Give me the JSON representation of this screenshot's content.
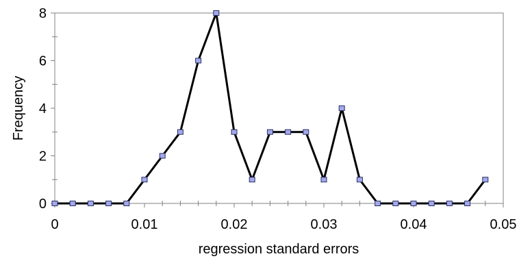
{
  "chart_data": {
    "type": "line",
    "xlabel": "regression standard errors",
    "ylabel": "Frequency",
    "xlim": [
      0,
      0.05
    ],
    "ylim": [
      0,
      8
    ],
    "x_ticks": [
      "0",
      "0.01",
      "0.02",
      "0.03",
      "0.04",
      "0.05"
    ],
    "y_ticks": [
      "0",
      "2",
      "4",
      "6",
      "8"
    ],
    "grid": false,
    "series": [
      {
        "x": [
          0,
          0.002,
          0.004,
          0.006,
          0.008,
          0.01,
          0.012,
          0.014,
          0.016,
          0.018,
          0.02,
          0.022,
          0.024,
          0.026,
          0.028,
          0.03,
          0.032,
          0.034,
          0.036,
          0.038,
          0.04,
          0.042,
          0.044,
          0.046,
          0.048
        ],
        "values": [
          0,
          0,
          0,
          0,
          0,
          1,
          2,
          3,
          6,
          8,
          3,
          1,
          3,
          3,
          3,
          1,
          4,
          1,
          0,
          0,
          0,
          0,
          0,
          0,
          1
        ]
      }
    ],
    "colors": {
      "line": "#000000",
      "marker_fill": "#a3a8e8",
      "marker_stroke": "#2a2e6a"
    }
  }
}
